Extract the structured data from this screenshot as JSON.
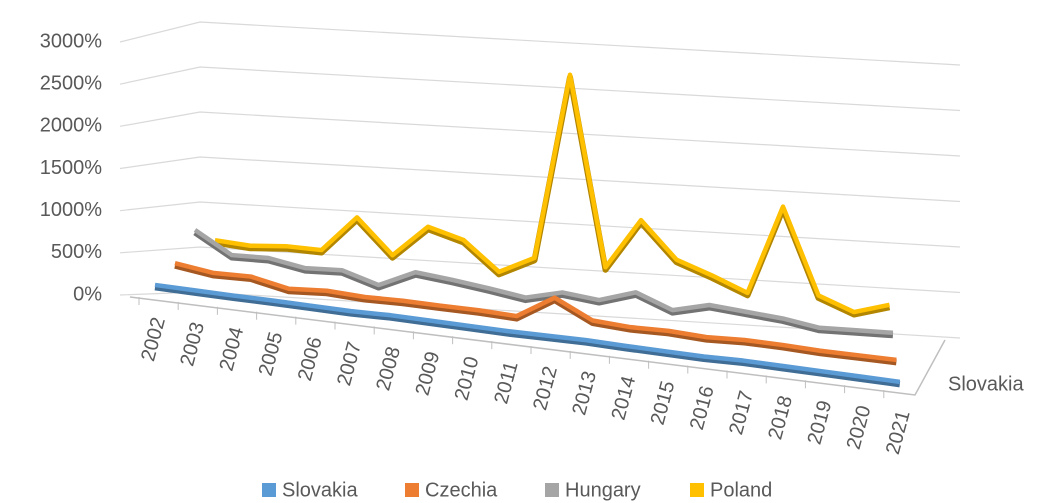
{
  "chart_data": {
    "type": "line3d",
    "categories": [
      "2002",
      "2003",
      "2004",
      "2005",
      "2006",
      "2007",
      "2008",
      "2009",
      "2010",
      "2011",
      "2012",
      "2013",
      "2014",
      "2015",
      "2016",
      "2017",
      "2018",
      "2019",
      "2020",
      "2021"
    ],
    "series": [
      {
        "name": "Slovakia",
        "color": "#5b9bd5",
        "values": [
          95,
          90,
          85,
          85,
          80,
          75,
          85,
          80,
          75,
          70,
          75,
          80,
          70,
          65,
          60,
          70,
          65,
          60,
          55,
          50
        ]
      },
      {
        "name": "Czechia",
        "color": "#ed7d31",
        "values": [
          370,
          300,
          300,
          200,
          220,
          190,
          190,
          175,
          165,
          140,
          400,
          175,
          140,
          140,
          110,
          120,
          105,
          80,
          70,
          60
        ]
      },
      {
        "name": "Hungary",
        "color": "#a5a5a5",
        "values": [
          780,
          515,
          510,
          420,
          425,
          280,
          460,
          400,
          330,
          250,
          340,
          280,
          400,
          220,
          310,
          260,
          210,
          130,
          130,
          130
        ]
      },
      {
        "name": "Poland",
        "color": "#ffc000",
        "values": [
          680,
          630,
          640,
          610,
          1010,
          580,
          930,
          790,
          430,
          610,
          2780,
          530,
          1100,
          650,
          480,
          290,
          1320,
          290,
          110,
          210
        ]
      }
    ],
    "ylim": [
      0,
      3000
    ],
    "yticks": [
      {
        "value": 0,
        "label": "0%"
      },
      {
        "value": 500,
        "label": "500%"
      },
      {
        "value": 1000,
        "label": "1000%"
      },
      {
        "value": 1500,
        "label": "1500%"
      },
      {
        "value": 2000,
        "label": "2000%"
      },
      {
        "value": 2500,
        "label": "2500%"
      },
      {
        "value": 3000,
        "label": "3000%"
      }
    ],
    "grid": true
  }
}
